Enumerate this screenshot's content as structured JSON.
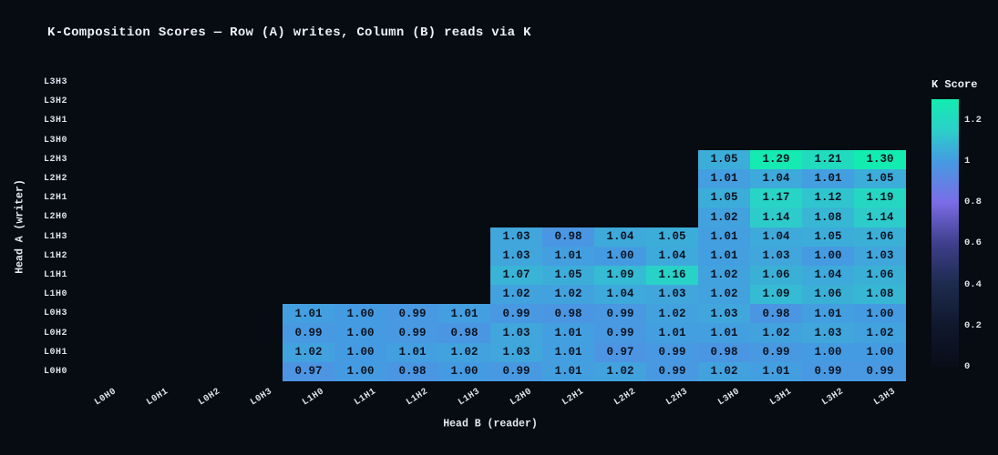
{
  "page": {
    "background": "#070b12"
  },
  "chart_data": {
    "type": "heatmap",
    "title": "K-Composition Scores — Row (A) writes, Column (B) reads via K",
    "xlabel": "Head B (reader)",
    "ylabel": "Head A (writer)",
    "x_categories": [
      "L0H0",
      "L0H1",
      "L0H2",
      "L0H3",
      "L1H0",
      "L1H1",
      "L1H2",
      "L1H3",
      "L2H0",
      "L2H1",
      "L2H2",
      "L2H3",
      "L3H0",
      "L3H1",
      "L3H2",
      "L3H3"
    ],
    "rows": [
      {
        "label": "L3H3",
        "values": [
          null,
          null,
          null,
          null,
          null,
          null,
          null,
          null,
          null,
          null,
          null,
          null,
          null,
          null,
          null,
          null
        ]
      },
      {
        "label": "L3H2",
        "values": [
          null,
          null,
          null,
          null,
          null,
          null,
          null,
          null,
          null,
          null,
          null,
          null,
          null,
          null,
          null,
          null
        ]
      },
      {
        "label": "L3H1",
        "values": [
          null,
          null,
          null,
          null,
          null,
          null,
          null,
          null,
          null,
          null,
          null,
          null,
          null,
          null,
          null,
          null
        ]
      },
      {
        "label": "L3H0",
        "values": [
          null,
          null,
          null,
          null,
          null,
          null,
          null,
          null,
          null,
          null,
          null,
          null,
          null,
          null,
          null,
          null
        ]
      },
      {
        "label": "L2H3",
        "values": [
          null,
          null,
          null,
          null,
          null,
          null,
          null,
          null,
          null,
          null,
          null,
          null,
          1.05,
          1.29,
          1.21,
          1.3
        ]
      },
      {
        "label": "L2H2",
        "values": [
          null,
          null,
          null,
          null,
          null,
          null,
          null,
          null,
          null,
          null,
          null,
          null,
          1.01,
          1.04,
          1.01,
          1.05
        ]
      },
      {
        "label": "L2H1",
        "values": [
          null,
          null,
          null,
          null,
          null,
          null,
          null,
          null,
          null,
          null,
          null,
          null,
          1.05,
          1.17,
          1.12,
          1.19
        ]
      },
      {
        "label": "L2H0",
        "values": [
          null,
          null,
          null,
          null,
          null,
          null,
          null,
          null,
          null,
          null,
          null,
          null,
          1.02,
          1.14,
          1.08,
          1.14
        ]
      },
      {
        "label": "L1H3",
        "values": [
          null,
          null,
          null,
          null,
          null,
          null,
          null,
          null,
          1.03,
          0.98,
          1.04,
          1.05,
          1.01,
          1.04,
          1.05,
          1.06
        ]
      },
      {
        "label": "L1H2",
        "values": [
          null,
          null,
          null,
          null,
          null,
          null,
          null,
          null,
          1.03,
          1.01,
          1.0,
          1.04,
          1.01,
          1.03,
          1.0,
          1.03
        ]
      },
      {
        "label": "L1H1",
        "values": [
          null,
          null,
          null,
          null,
          null,
          null,
          null,
          null,
          1.07,
          1.05,
          1.09,
          1.16,
          1.02,
          1.06,
          1.04,
          1.06
        ]
      },
      {
        "label": "L1H0",
        "values": [
          null,
          null,
          null,
          null,
          null,
          null,
          null,
          null,
          1.02,
          1.02,
          1.04,
          1.03,
          1.02,
          1.09,
          1.06,
          1.08
        ]
      },
      {
        "label": "L0H3",
        "values": [
          null,
          null,
          null,
          null,
          1.01,
          1.0,
          0.99,
          1.01,
          0.99,
          0.98,
          0.99,
          1.02,
          1.03,
          0.98,
          1.01,
          1.0
        ]
      },
      {
        "label": "L0H2",
        "values": [
          null,
          null,
          null,
          null,
          0.99,
          1.0,
          0.99,
          0.98,
          1.03,
          1.01,
          0.99,
          1.01,
          1.01,
          1.02,
          1.03,
          1.02
        ]
      },
      {
        "label": "L0H1",
        "values": [
          null,
          null,
          null,
          null,
          1.02,
          1.0,
          1.01,
          1.02,
          1.03,
          1.01,
          0.97,
          0.99,
          0.98,
          0.99,
          1.0,
          1.0
        ]
      },
      {
        "label": "L0H0",
        "values": [
          null,
          null,
          null,
          null,
          0.97,
          1.0,
          0.98,
          1.0,
          0.99,
          1.01,
          1.02,
          0.99,
          1.02,
          1.01,
          0.99,
          0.99
        ]
      }
    ],
    "value_format_decimals": 2,
    "colorbar": {
      "label": "K Score",
      "vmin": 0,
      "vmax": 1.3,
      "ticks": [
        {
          "value": 1.2,
          "label": "1.2"
        },
        {
          "value": 1.0,
          "label": "1"
        },
        {
          "value": 0.8,
          "label": "0.8"
        },
        {
          "value": 0.6,
          "label": "0.6"
        },
        {
          "value": 0.4,
          "label": "0.4"
        },
        {
          "value": 0.2,
          "label": "0.2"
        },
        {
          "value": 0.0,
          "label": "0"
        }
      ]
    },
    "colormap_stops": [
      [
        0.0,
        "#0a0d18"
      ],
      [
        0.2,
        "#10182d"
      ],
      [
        0.4,
        "#1d2b4e"
      ],
      [
        0.6,
        "#3f3f8c"
      ],
      [
        0.8,
        "#7a6de6"
      ],
      [
        1.0,
        "#459be1"
      ],
      [
        1.15,
        "#2bd0c9"
      ],
      [
        1.3,
        "#13ecb0"
      ]
    ],
    "colors": {
      "background": "#070b12",
      "cell_text": "#0c1322",
      "axis_text": "#dde2ec"
    },
    "legend_position": "right",
    "grid": false
  }
}
